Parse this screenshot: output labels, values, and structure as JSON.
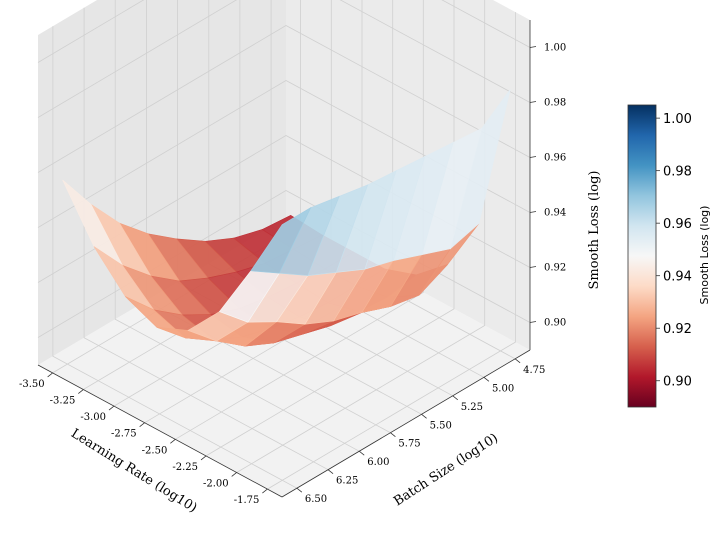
{
  "chart_data": {
    "type": "surface",
    "title": "",
    "xlabel": "Learning Rate (log10)",
    "ylabel": "Batch Size (log10)",
    "zlabel": "Smooth Loss (log)",
    "colorbar_label": "Smooth Loss (log)",
    "colormap": "RdBu",
    "x_ticks": [
      "-1.75",
      "-2.00",
      "-2.25",
      "-2.50",
      "-2.75",
      "-3.00",
      "-3.25",
      "-3.50"
    ],
    "y_ticks": [
      "4.75",
      "5.00",
      "5.25",
      "5.50",
      "5.75",
      "6.00",
      "6.25",
      "6.50"
    ],
    "z_ticks": [
      "0.90",
      "0.92",
      "0.94",
      "0.96",
      "0.98",
      "1.00"
    ],
    "colorbar_ticks": [
      "0.90",
      "0.92",
      "0.94",
      "0.96",
      "0.98",
      "1.00"
    ],
    "xlim": [
      -1.75,
      -3.5
    ],
    "ylim": [
      4.75,
      6.5
    ],
    "zlim": [
      0.89,
      1.01
    ],
    "clim": [
      0.89,
      1.005
    ],
    "surface_z": [
      [
        0.985,
        0.985,
        0.983,
        0.981,
        0.98,
        0.979,
        0.978,
        0.977,
        0.985
      ],
      [
        0.962,
        0.955,
        0.948,
        0.943,
        0.938,
        0.935,
        0.931,
        0.927,
        0.93
      ],
      [
        0.941,
        0.931,
        0.925,
        0.918,
        0.913,
        0.91,
        0.906,
        0.904,
        0.909
      ],
      [
        0.928,
        0.918,
        0.91,
        0.905,
        0.902,
        0.899,
        0.898,
        0.897,
        0.899
      ],
      [
        0.923,
        0.913,
        0.906,
        0.901,
        0.898,
        0.896,
        0.895,
        0.895,
        0.895
      ],
      [
        0.928,
        0.917,
        0.909,
        0.903,
        0.899,
        0.897,
        0.896,
        0.895,
        0.895
      ],
      [
        0.94,
        0.927,
        0.917,
        0.909,
        0.904,
        0.9,
        0.897,
        0.896,
        0.895
      ],
      [
        0.958,
        0.943,
        0.93,
        0.92,
        0.912,
        0.905,
        0.9,
        0.897,
        0.896
      ]
    ]
  }
}
